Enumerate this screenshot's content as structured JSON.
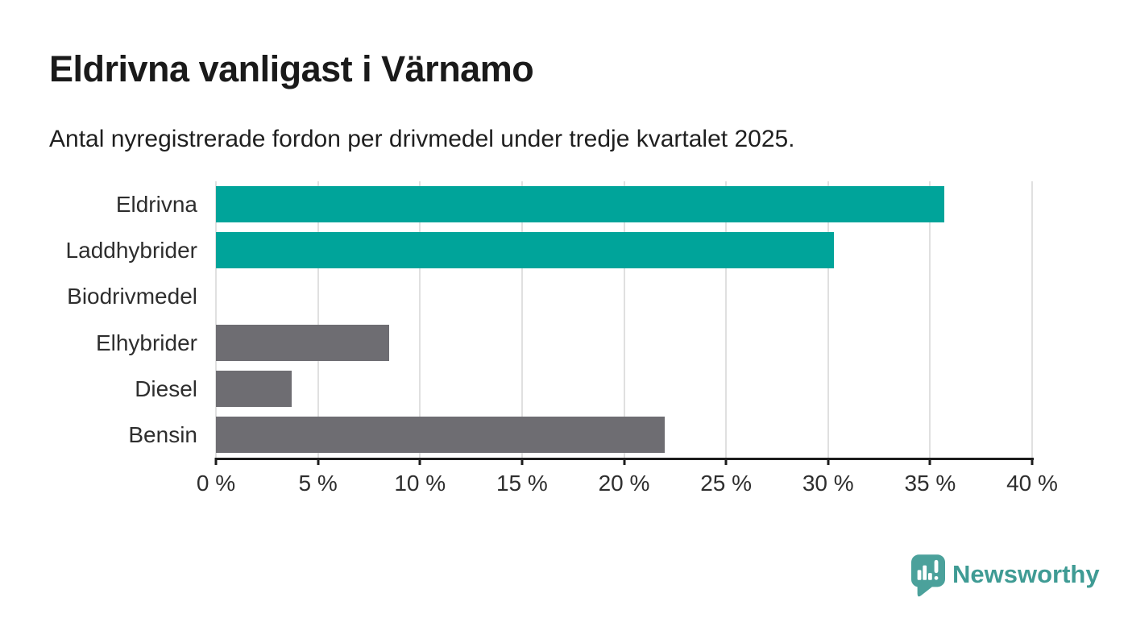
{
  "header": {
    "title": "Eldrivna vanligast i Värnamo",
    "subtitle": "Antal nyregistrerade fordon per drivmedel under tredje kvartalet 2025."
  },
  "chart_data": {
    "type": "bar",
    "orientation": "horizontal",
    "title": "Eldrivna vanligast i Värnamo",
    "subtitle": "Antal nyregistrerade fordon per drivmedel under tredje kvartalet 2025.",
    "categories": [
      "Eldrivna",
      "Laddhybrider",
      "Biodrivmedel",
      "Elhybrider",
      "Diesel",
      "Bensin"
    ],
    "values": [
      35.7,
      30.3,
      0,
      8.5,
      3.7,
      22.0
    ],
    "unit": "%",
    "xlabel": "",
    "ylabel": "",
    "xlim": [
      0,
      40
    ],
    "tick_step": 5,
    "x_tick_labels": [
      "0 %",
      "5 %",
      "10 %",
      "15 %",
      "20 %",
      "25 %",
      "30 %",
      "35 %",
      "40 %"
    ],
    "grid": true,
    "legend": false,
    "gridline_color": "#e0e0e0",
    "axis_color": "#1c1c1c",
    "colors": {
      "highlight": "#00a49a",
      "default": "#6e6d72"
    },
    "bar_colors": [
      "#00a49a",
      "#00a49a",
      "#6e6d72",
      "#6e6d72",
      "#6e6d72",
      "#6e6d72"
    ]
  },
  "branding": {
    "name": "Newsworthy",
    "text_color": "#3f9b94",
    "icon_color": "#4ba19b",
    "icon": "newsworthy-pin-barchart-icon"
  }
}
